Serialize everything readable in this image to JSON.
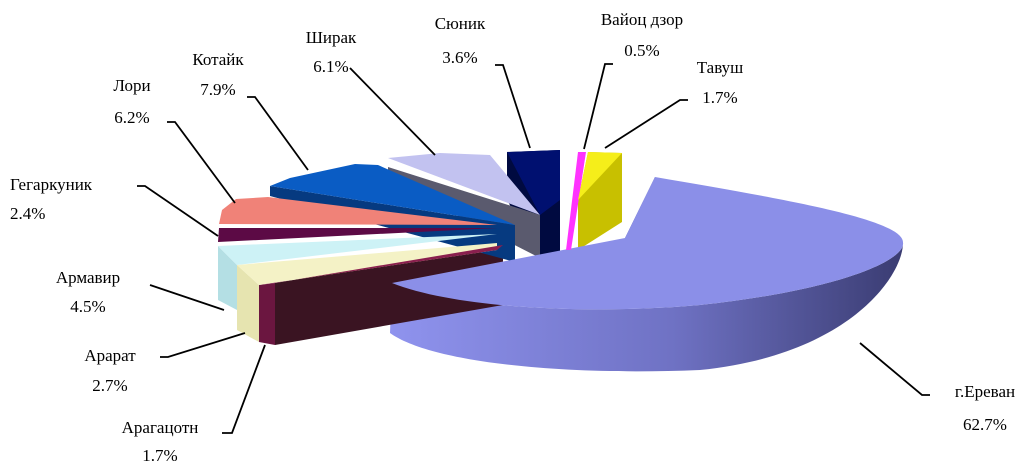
{
  "chart_data": {
    "type": "pie",
    "variant": "3d-exploded",
    "title": "",
    "slices": [
      {
        "name": "г.Ереван",
        "value": 62.7,
        "label": "62.7%",
        "color": "#8b8fe8"
      },
      {
        "name": "Арагацотн",
        "value": 1.7,
        "label": "1.7%",
        "color": "#8a1f4e"
      },
      {
        "name": "Арарат",
        "value": 2.7,
        "label": "2.7%",
        "color": "#f4f2c6"
      },
      {
        "name": "Армавир",
        "value": 4.5,
        "label": "4.5%",
        "color": "#cdf2f6"
      },
      {
        "name": "Гегаркуник",
        "value": 2.4,
        "label": "2.4%",
        "color": "#5c0a45"
      },
      {
        "name": "Лори",
        "value": 6.2,
        "label": "6.2%",
        "color": "#f08278"
      },
      {
        "name": "Котайк",
        "value": 7.9,
        "label": "7.9%",
        "color": "#0a5cc4"
      },
      {
        "name": "Ширак",
        "value": 6.1,
        "label": "6.1%",
        "color": "#c2c2f0"
      },
      {
        "name": "Сюник",
        "value": 3.6,
        "label": "3.6%",
        "color": "#001070"
      },
      {
        "name": "Вайоц дзор",
        "value": 0.5,
        "label": "0.5%",
        "color": "#ff33ff"
      },
      {
        "name": "Тавуш",
        "value": 1.7,
        "label": "1.7%",
        "color": "#f5ee1a"
      }
    ],
    "extra_dark_wall_color": "#3a1422"
  }
}
